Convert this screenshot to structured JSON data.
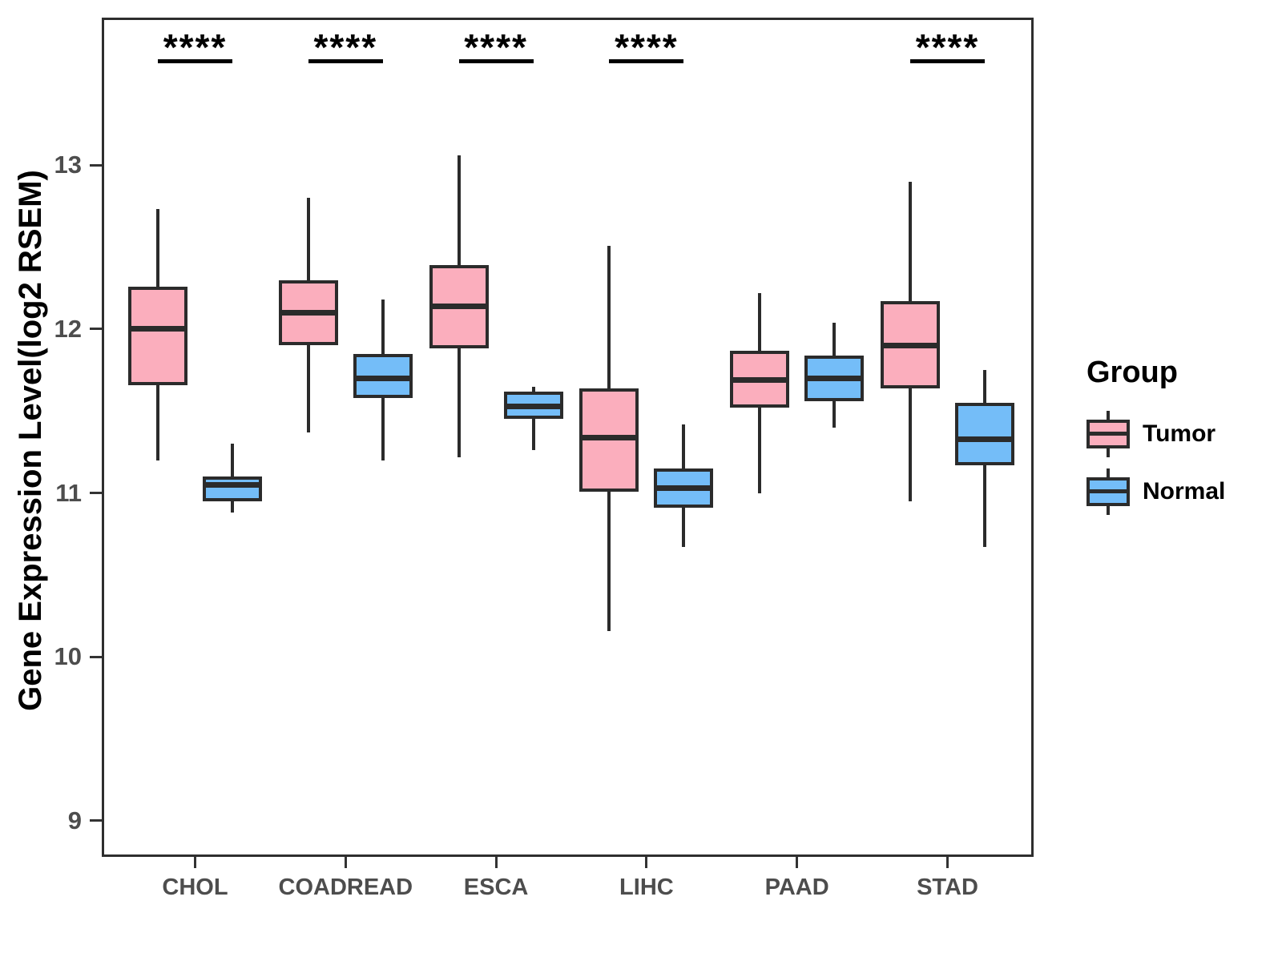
{
  "chart_data": {
    "type": "boxplot",
    "title": "",
    "ylabel": "Gene Expression Level(log2 RSEM)",
    "xlabel": "",
    "ylim": [
      8.78,
      13.9
    ],
    "y_ticks": [
      9,
      10,
      11,
      12,
      13
    ],
    "categories": [
      "CHOL",
      "COADREAD",
      "ESCA",
      "LIHC",
      "PAAD",
      "STAD"
    ],
    "legend_title": "Group",
    "legend_position": "right",
    "grid": false,
    "series": [
      {
        "name": "Tumor",
        "fill": "#FBAEBD",
        "stroke": "#2B2B2B",
        "stats": [
          {
            "category": "CHOL",
            "whisker_low": 11.2,
            "q1": 11.66,
            "median": 12.0,
            "q3": 12.26,
            "whisker_high": 12.73
          },
          {
            "category": "COADREAD",
            "whisker_low": 11.37,
            "q1": 11.9,
            "median": 12.1,
            "q3": 12.3,
            "whisker_high": 12.8
          },
          {
            "category": "ESCA",
            "whisker_low": 11.22,
            "q1": 11.88,
            "median": 12.14,
            "q3": 12.39,
            "whisker_high": 13.06
          },
          {
            "category": "LIHC",
            "whisker_low": 10.16,
            "q1": 11.01,
            "median": 11.34,
            "q3": 11.64,
            "whisker_high": 12.51
          },
          {
            "category": "PAAD",
            "whisker_low": 11.0,
            "q1": 11.52,
            "median": 11.69,
            "q3": 11.87,
            "whisker_high": 12.22
          },
          {
            "category": "STAD",
            "whisker_low": 10.95,
            "q1": 11.64,
            "median": 11.9,
            "q3": 12.17,
            "whisker_high": 12.9
          }
        ]
      },
      {
        "name": "Normal",
        "fill": "#74BDF8",
        "stroke": "#2B2B2B",
        "stats": [
          {
            "category": "CHOL",
            "whisker_low": 10.88,
            "q1": 10.95,
            "median": 11.05,
            "q3": 11.1,
            "whisker_high": 11.3
          },
          {
            "category": "COADREAD",
            "whisker_low": 11.2,
            "q1": 11.58,
            "median": 11.7,
            "q3": 11.85,
            "whisker_high": 12.18
          },
          {
            "category": "ESCA",
            "whisker_low": 11.26,
            "q1": 11.45,
            "median": 11.53,
            "q3": 11.62,
            "whisker_high": 11.65
          },
          {
            "category": "LIHC",
            "whisker_low": 10.67,
            "q1": 10.91,
            "median": 11.03,
            "q3": 11.15,
            "whisker_high": 11.42
          },
          {
            "category": "PAAD",
            "whisker_low": 11.4,
            "q1": 11.56,
            "median": 11.7,
            "q3": 11.84,
            "whisker_high": 12.04
          },
          {
            "category": "STAD",
            "whisker_low": 10.67,
            "q1": 11.17,
            "median": 11.33,
            "q3": 11.55,
            "whisker_high": 11.75
          }
        ]
      }
    ],
    "significance": [
      {
        "category": "CHOL",
        "label": "****"
      },
      {
        "category": "COADREAD",
        "label": "****"
      },
      {
        "category": "ESCA",
        "label": "****"
      },
      {
        "category": "LIHC",
        "label": "****"
      },
      {
        "category": "STAD",
        "label": "****"
      }
    ]
  },
  "colors": {
    "background": "#FFFFFF",
    "panel_border": "#2E2E2E",
    "box_stroke": "#2B2B2B",
    "tick_label": "#4D4D4D",
    "axis_title": "#000000",
    "significance": "#000000"
  }
}
